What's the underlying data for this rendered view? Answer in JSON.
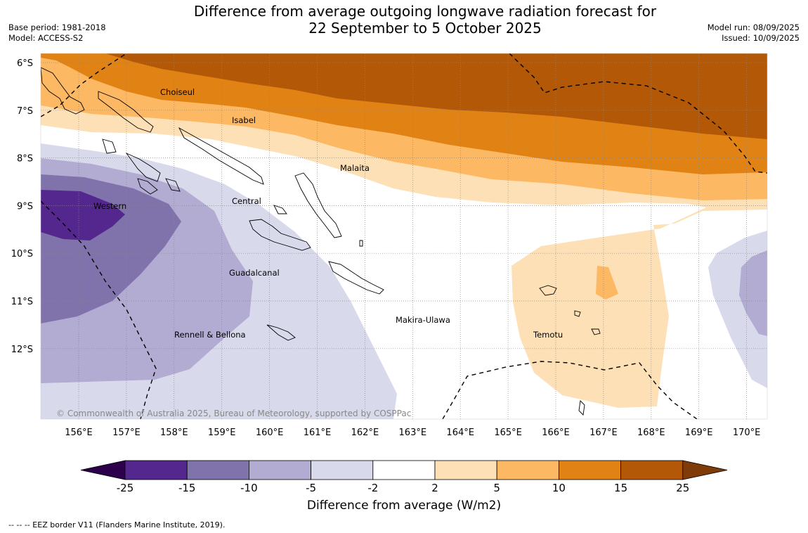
{
  "title": {
    "line1": "Difference from average outgoing longwave radiation forecast for",
    "line2": "22 September to 5 October 2025"
  },
  "meta_left": {
    "base_period": "Base period: 1981-2018",
    "model": "Model: ACCESS-S2"
  },
  "meta_right": {
    "model_run": "Model run: 08/09/2025",
    "issued": "Issued: 10/09/2025"
  },
  "map": {
    "lat_labels": [
      "6°S",
      "7°S",
      "8°S",
      "9°S",
      "10°S",
      "11°S",
      "12°S"
    ],
    "lon_labels": [
      "156°E",
      "157°E",
      "158°E",
      "159°E",
      "160°E",
      "161°E",
      "162°E",
      "163°E",
      "164°E",
      "165°E",
      "166°E",
      "167°E",
      "168°E",
      "169°E",
      "170°E"
    ],
    "province_labels": [
      "Choiseul",
      "Isabel",
      "Malaita",
      "Western",
      "Central",
      "Guadalcanal",
      "Makira-Ulawa",
      "Rennell & Bellona",
      "Temotu"
    ],
    "copyright": "© Commonwealth of Australia 2025, Bureau of Meteorology, supported by COSPPac"
  },
  "colorbar": {
    "ticks": [
      "-25",
      "-15",
      "-10",
      "-5",
      "-2",
      "2",
      "5",
      "10",
      "15",
      "25"
    ],
    "colors": [
      "#54278f",
      "#8073ac",
      "#b2abd2",
      "#d8daeb",
      "#ffffff",
      "#fee0b6",
      "#fdb863",
      "#e08214",
      "#b35806"
    ],
    "extend_low_color": "#2d004b",
    "extend_high_color": "#7f3b08",
    "label": "Difference from average (W/m2)"
  },
  "footer": "--  --  -- EEZ border V11 (Flanders Marine Institute, 2019)."
}
